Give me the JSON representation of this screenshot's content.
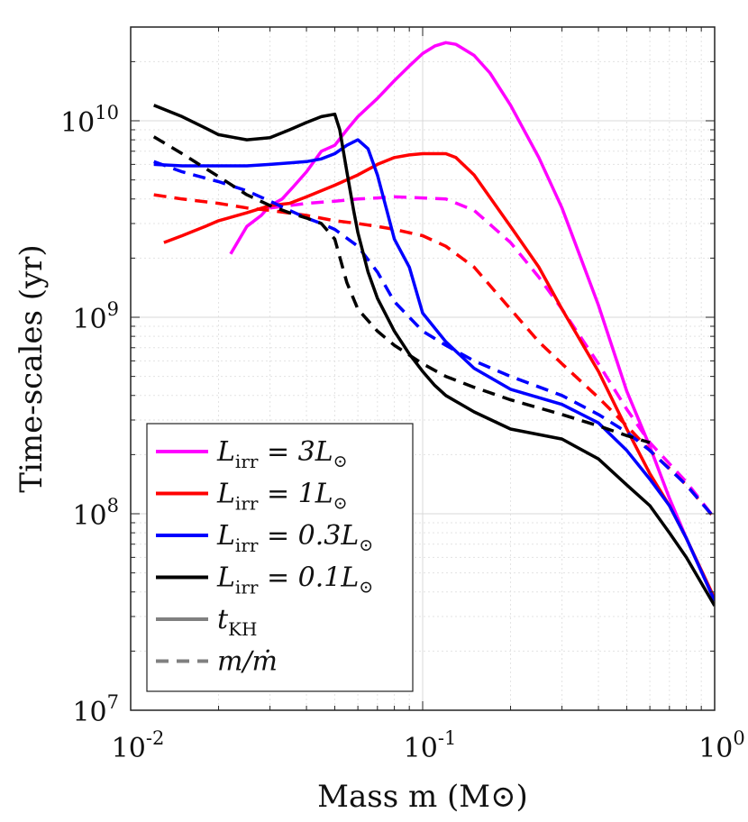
{
  "chart_data": {
    "type": "line",
    "title": "",
    "xlabel": "Mass m (M⊙)",
    "ylabel": "Time-scales (yr)",
    "xscale": "log",
    "yscale": "log",
    "xlim": [
      0.01,
      1
    ],
    "ylim": [
      10000000,
      30000000000
    ],
    "grid": true,
    "x_ticks": [
      {
        "value": 0.01,
        "base": "10",
        "exp": "-2"
      },
      {
        "value": 0.1,
        "base": "10",
        "exp": "-1"
      },
      {
        "value": 1,
        "base": "10",
        "exp": "0"
      }
    ],
    "y_ticks": [
      {
        "value": 10000000,
        "base": "10",
        "exp": "7"
      },
      {
        "value": 100000000,
        "base": "10",
        "exp": "8"
      },
      {
        "value": 1000000000,
        "base": "10",
        "exp": "9"
      },
      {
        "value": 10000000000,
        "base": "10",
        "exp": "10"
      }
    ],
    "legend_position": "lower-left",
    "legend": [
      {
        "label": "L_irr = 3L⊙",
        "main": "L",
        "sub": "irr",
        "rhs": " = 3L",
        "sun": "⊙",
        "color": "#ff00ff",
        "dash": false
      },
      {
        "label": "L_irr = 1L⊙",
        "main": "L",
        "sub": "irr",
        "rhs": " = 1L",
        "sun": "⊙",
        "color": "#ff0000",
        "dash": false
      },
      {
        "label": "L_irr = 0.3L⊙",
        "main": "L",
        "sub": "irr",
        "rhs": " = 0.3L",
        "sun": "⊙",
        "color": "#0000ff",
        "dash": false
      },
      {
        "label": "L_irr = 0.1L⊙",
        "main": "L",
        "sub": "irr",
        "rhs": " = 0.1L",
        "sun": "⊙",
        "color": "#000000",
        "dash": false
      },
      {
        "label": "t_KH",
        "main": "t",
        "sub": "KH",
        "rhs": "",
        "sun": "",
        "color": "#808080",
        "dash": false
      },
      {
        "label": "m/ṁ",
        "main": "m/ṁ",
        "sub": "",
        "rhs": "",
        "sun": "",
        "color": "#808080",
        "dash": true
      }
    ],
    "series": [
      {
        "name": "L_irr = 3 L⊙, t_KH",
        "color": "#ff00ff",
        "dash": false,
        "x": [
          0.022,
          0.025,
          0.028,
          0.03,
          0.033,
          0.036,
          0.04,
          0.045,
          0.05,
          0.055,
          0.06,
          0.07,
          0.08,
          0.09,
          0.1,
          0.11,
          0.12,
          0.13,
          0.15,
          0.17,
          0.2,
          0.25,
          0.3,
          0.4,
          0.5,
          0.6,
          0.7,
          0.8,
          1.0
        ],
        "y": [
          2100000000,
          2900000000,
          3300000000,
          3700000000,
          4000000000,
          4600000000,
          5500000000,
          7000000000,
          7500000000,
          9000000000,
          10500000000,
          13000000000,
          16000000000,
          19000000000,
          22000000000,
          24000000000,
          25000000000,
          24500000000,
          21500000000,
          17500000000,
          12000000000,
          6500000000,
          3600000000,
          1150000000,
          420000000,
          220000000,
          120000000,
          75000000,
          36000000
        ]
      },
      {
        "name": "L_irr = 3 L⊙, m/ṁ",
        "color": "#ff00ff",
        "dash": true,
        "x": [
          0.03,
          0.035,
          0.04,
          0.05,
          0.06,
          0.07,
          0.08,
          0.1,
          0.12,
          0.15,
          0.2,
          0.25,
          0.3,
          0.4,
          0.5,
          0.6,
          0.7,
          0.8,
          1.0
        ],
        "y": [
          3600000000,
          3700000000,
          3800000000,
          3900000000,
          4000000000,
          4050000000,
          4100000000,
          4050000000,
          4000000000,
          3500000000,
          2400000000,
          1600000000,
          1100000000,
          580000000,
          340000000,
          230000000,
          180000000,
          145000000,
          95000000
        ]
      },
      {
        "name": "L_irr = 1 L⊙, t_KH",
        "color": "#ff0000",
        "dash": false,
        "x": [
          0.013,
          0.015,
          0.018,
          0.02,
          0.025,
          0.03,
          0.035,
          0.04,
          0.05,
          0.06,
          0.07,
          0.08,
          0.09,
          0.1,
          0.11,
          0.12,
          0.13,
          0.15,
          0.2,
          0.25,
          0.3,
          0.4,
          0.5,
          0.6,
          0.7,
          0.8,
          1.0
        ],
        "y": [
          2400000000,
          2600000000,
          2900000000,
          3100000000,
          3400000000,
          3700000000,
          3800000000,
          4100000000,
          4700000000,
          5300000000,
          6000000000,
          6500000000,
          6700000000,
          6800000000,
          6800000000,
          6800000000,
          6500000000,
          5300000000,
          2900000000,
          1800000000,
          1100000000,
          530000000,
          270000000,
          160000000,
          110000000,
          75000000,
          37000000
        ]
      },
      {
        "name": "L_irr = 1 L⊙, m/ṁ",
        "color": "#ff0000",
        "dash": true,
        "x": [
          0.012,
          0.015,
          0.02,
          0.025,
          0.03,
          0.04,
          0.05,
          0.06,
          0.07,
          0.08,
          0.1,
          0.12,
          0.15,
          0.2,
          0.25,
          0.3,
          0.4,
          0.5,
          0.6,
          0.7,
          0.8,
          1.0
        ],
        "y": [
          4200000000,
          4000000000,
          3800000000,
          3600000000,
          3500000000,
          3300000000,
          3100000000,
          3000000000,
          2900000000,
          2800000000,
          2600000000,
          2300000000,
          1800000000,
          1100000000,
          750000000,
          580000000,
          390000000,
          280000000,
          210000000,
          170000000,
          140000000,
          95000000
        ]
      },
      {
        "name": "L_irr = 0.3 L⊙, t_KH",
        "color": "#0000ff",
        "dash": false,
        "x": [
          0.012,
          0.015,
          0.02,
          0.025,
          0.03,
          0.035,
          0.04,
          0.045,
          0.05,
          0.055,
          0.06,
          0.065,
          0.07,
          0.075,
          0.08,
          0.09,
          0.1,
          0.12,
          0.15,
          0.2,
          0.3,
          0.4,
          0.5,
          0.6,
          0.7,
          0.8,
          1.0
        ],
        "y": [
          6000000000,
          5900000000,
          5900000000,
          5900000000,
          6000000000,
          6100000000,
          6200000000,
          6400000000,
          6800000000,
          7500000000,
          8000000000,
          7200000000,
          5300000000,
          3600000000,
          2500000000,
          1800000000,
          1050000000,
          750000000,
          550000000,
          430000000,
          360000000,
          290000000,
          210000000,
          150000000,
          110000000,
          75000000,
          36000000
        ]
      },
      {
        "name": "L_irr = 0.3 L⊙, m/ṁ",
        "color": "#0000ff",
        "dash": true,
        "x": [
          0.012,
          0.015,
          0.02,
          0.025,
          0.03,
          0.035,
          0.04,
          0.045,
          0.05,
          0.06,
          0.07,
          0.08,
          0.1,
          0.12,
          0.15,
          0.2,
          0.3,
          0.4,
          0.5,
          0.6,
          0.8,
          1.0
        ],
        "y": [
          6200000000,
          5500000000,
          4900000000,
          4400000000,
          3900000000,
          3500000000,
          3200000000,
          3000000000,
          2800000000,
          2300000000,
          1700000000,
          1200000000,
          850000000,
          720000000,
          600000000,
          500000000,
          400000000,
          320000000,
          260000000,
          210000000,
          140000000,
          95000000
        ]
      },
      {
        "name": "L_irr = 0.1 L⊙, t_KH",
        "color": "#000000",
        "dash": false,
        "x": [
          0.012,
          0.015,
          0.018,
          0.02,
          0.025,
          0.03,
          0.035,
          0.04,
          0.045,
          0.05,
          0.052,
          0.055,
          0.058,
          0.06,
          0.065,
          0.07,
          0.08,
          0.09,
          0.1,
          0.11,
          0.12,
          0.15,
          0.2,
          0.3,
          0.4,
          0.5,
          0.6,
          0.7,
          0.8,
          1.0
        ],
        "y": [
          12000000000,
          10500000000,
          9200000000,
          8500000000,
          8000000000,
          8200000000,
          9000000000,
          9800000000,
          10500000000,
          10800000000,
          9000000000,
          5500000000,
          3500000000,
          2700000000,
          1700000000,
          1250000000,
          850000000,
          650000000,
          530000000,
          450000000,
          400000000,
          330000000,
          270000000,
          240000000,
          190000000,
          140000000,
          110000000,
          80000000,
          60000000,
          34000000
        ]
      },
      {
        "name": "L_irr = 0.1 L⊙, m/ṁ",
        "color": "#000000",
        "dash": true,
        "x": [
          0.012,
          0.015,
          0.02,
          0.025,
          0.03,
          0.035,
          0.04,
          0.045,
          0.05,
          0.055,
          0.06,
          0.07,
          0.08,
          0.1,
          0.12,
          0.15,
          0.2,
          0.3,
          0.4,
          0.5,
          0.6
        ],
        "y": [
          8300000000,
          6800000000,
          5200000000,
          4200000000,
          3700000000,
          3400000000,
          3200000000,
          3000000000,
          2500000000,
          1500000000,
          1100000000,
          850000000,
          720000000,
          580000000,
          500000000,
          440000000,
          380000000,
          320000000,
          280000000,
          250000000,
          230000000
        ]
      }
    ]
  }
}
